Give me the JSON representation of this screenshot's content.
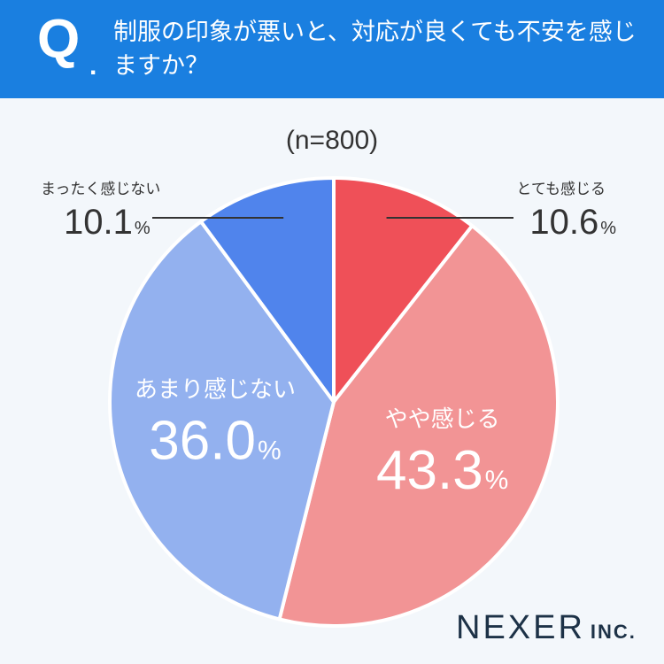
{
  "header": {
    "q_letter": "Q",
    "q_dot": ".",
    "question": "制服の印象が悪いと、対応が良くても不安を感じますか？"
  },
  "sample_size": "(n=800)",
  "brand": {
    "name": "NEXER",
    "suffix": "INC."
  },
  "colors": {
    "header_bg": "#1a7fe0",
    "strongly_yes": "#ef5058",
    "somewhat_yes": "#f29495",
    "somewhat_no": "#93b1ef",
    "not_at_all": "#5084ec"
  },
  "chart_data": {
    "type": "pie",
    "start": "top",
    "direction": "clockwise",
    "unit": "%",
    "slices": [
      {
        "label": "とても感じる",
        "value": 10.6,
        "value_text": "10.6",
        "color": "#ef5058",
        "label_placement": "outside"
      },
      {
        "label": "やや感じる",
        "value": 43.3,
        "value_text": "43.3",
        "color": "#f29495",
        "label_placement": "inside"
      },
      {
        "label": "あまり感じない",
        "value": 36.0,
        "value_text": "36.0",
        "color": "#93b1ef",
        "label_placement": "inside"
      },
      {
        "label": "まったく感じない",
        "value": 10.1,
        "value_text": "10.1",
        "color": "#5084ec",
        "label_placement": "outside"
      }
    ]
  }
}
